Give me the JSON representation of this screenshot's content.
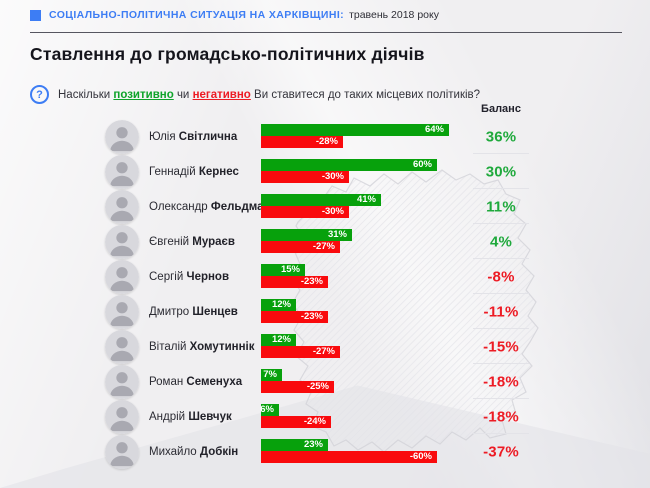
{
  "header": {
    "bullet_icon": "blue-square-icon",
    "kicker": "СОЦІАЛЬНО-ПОЛІТИЧНА СИТУАЦІЯ НА ХАРКІВЩИНІ:",
    "period": "травень 2018 року"
  },
  "title": "Ставлення до громадсько-політичних діячів",
  "question": {
    "icon": "question-mark-icon",
    "prefix": "Наскільки ",
    "positive_word": "позитивно",
    "conjunction": " чи ",
    "negative_word": "негативно",
    "suffix": " Ви ставитеся до таких місцевих політиків?"
  },
  "colors": {
    "accent_blue": "#3D7DF4",
    "bar_positive": "#07A10C",
    "bar_negative": "#F90A0D",
    "balance_positive": "#1FA93C",
    "balance_negative": "#ED1B24",
    "text_dark": "#15151c"
  },
  "people": [
    {
      "first": "Юлія",
      "last": "Світлична"
    },
    {
      "first": "Геннадій",
      "last": "Кернес"
    },
    {
      "first": "Олександр",
      "last": "Фельдман"
    },
    {
      "first": "Євгеній",
      "last": "Мураєв"
    },
    {
      "first": "Сергій",
      "last": "Чернов"
    },
    {
      "first": "Дмитро",
      "last": "Шенцев"
    },
    {
      "first": "Віталій",
      "last": "Хомутиннік"
    },
    {
      "first": "Роман",
      "last": "Семенуха"
    },
    {
      "first": "Андрій",
      "last": "Шевчук"
    },
    {
      "first": "Михайло",
      "last": "Добкін"
    }
  ],
  "chart_data": {
    "type": "bar",
    "orientation": "horizontal",
    "title": "Ставлення до громадсько-політичних діячів",
    "subtitle": "Наскільки позитивно чи негативно Ви ставитеся до таких місцевих політиків?",
    "categories": [
      "Юлія Світлична",
      "Геннадій Кернес",
      "Олександр Фельдман",
      "Євгеній Мураєв",
      "Сергій Чернов",
      "Дмитро Шенцев",
      "Віталій Хомутиннік",
      "Роман Семенуха",
      "Андрій Шевчук",
      "Михайло Добкін"
    ],
    "series": [
      {
        "name": "позитивно",
        "color": "#07A10C",
        "values": [
          64,
          60,
          41,
          31,
          15,
          12,
          12,
          7,
          6,
          23
        ]
      },
      {
        "name": "негативно",
        "color": "#F90A0D",
        "values": [
          -28,
          -30,
          -30,
          -27,
          -23,
          -23,
          -27,
          -25,
          -24,
          -60
        ]
      }
    ],
    "balance": {
      "label": "Баланс",
      "values": [
        36,
        30,
        11,
        4,
        -8,
        -11,
        -15,
        -18,
        -18,
        -37
      ]
    },
    "xlim": [
      0,
      100
    ],
    "value_suffix": "%",
    "grid": false,
    "legend_position": "none",
    "background_watermark": "kharkiv-oblast-map"
  }
}
